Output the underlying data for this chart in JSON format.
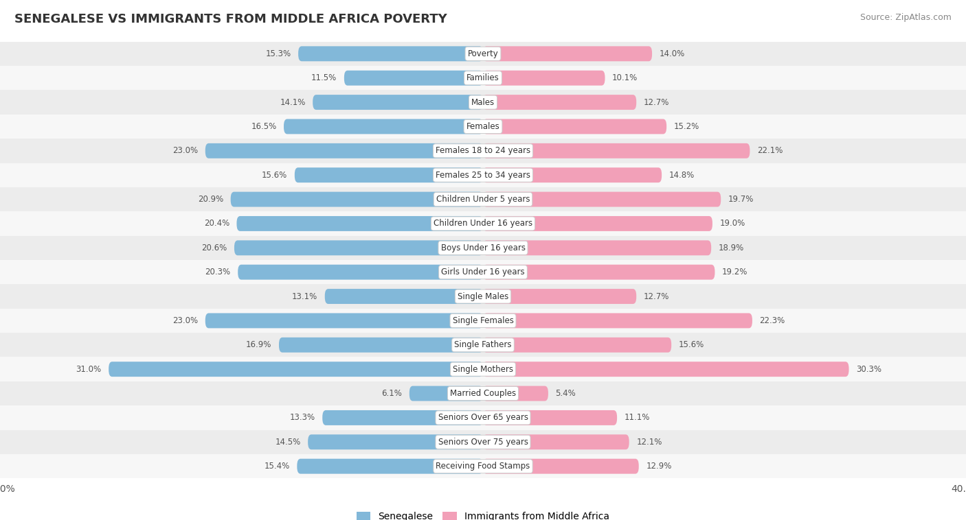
{
  "title": "SENEGALESE VS IMMIGRANTS FROM MIDDLE AFRICA POVERTY",
  "source": "Source: ZipAtlas.com",
  "categories": [
    "Poverty",
    "Families",
    "Males",
    "Females",
    "Females 18 to 24 years",
    "Females 25 to 34 years",
    "Children Under 5 years",
    "Children Under 16 years",
    "Boys Under 16 years",
    "Girls Under 16 years",
    "Single Males",
    "Single Females",
    "Single Fathers",
    "Single Mothers",
    "Married Couples",
    "Seniors Over 65 years",
    "Seniors Over 75 years",
    "Receiving Food Stamps"
  ],
  "senegalese": [
    15.3,
    11.5,
    14.1,
    16.5,
    23.0,
    15.6,
    20.9,
    20.4,
    20.6,
    20.3,
    13.1,
    23.0,
    16.9,
    31.0,
    6.1,
    13.3,
    14.5,
    15.4
  ],
  "immigrants": [
    14.0,
    10.1,
    12.7,
    15.2,
    22.1,
    14.8,
    19.7,
    19.0,
    18.9,
    19.2,
    12.7,
    22.3,
    15.6,
    30.3,
    5.4,
    11.1,
    12.1,
    12.9
  ],
  "senegalese_color": "#82B8D9",
  "immigrants_color": "#F2A0B8",
  "row_color_odd": "#ECECEC",
  "row_color_even": "#F7F7F7",
  "max_val": 40.0,
  "legend_label_1": "Senegalese",
  "legend_label_2": "Immigrants from Middle Africa",
  "background_color": "#FFFFFF",
  "title_fontsize": 13,
  "source_fontsize": 9,
  "label_fontsize": 8.5,
  "value_fontsize": 8.5,
  "legend_fontsize": 10
}
